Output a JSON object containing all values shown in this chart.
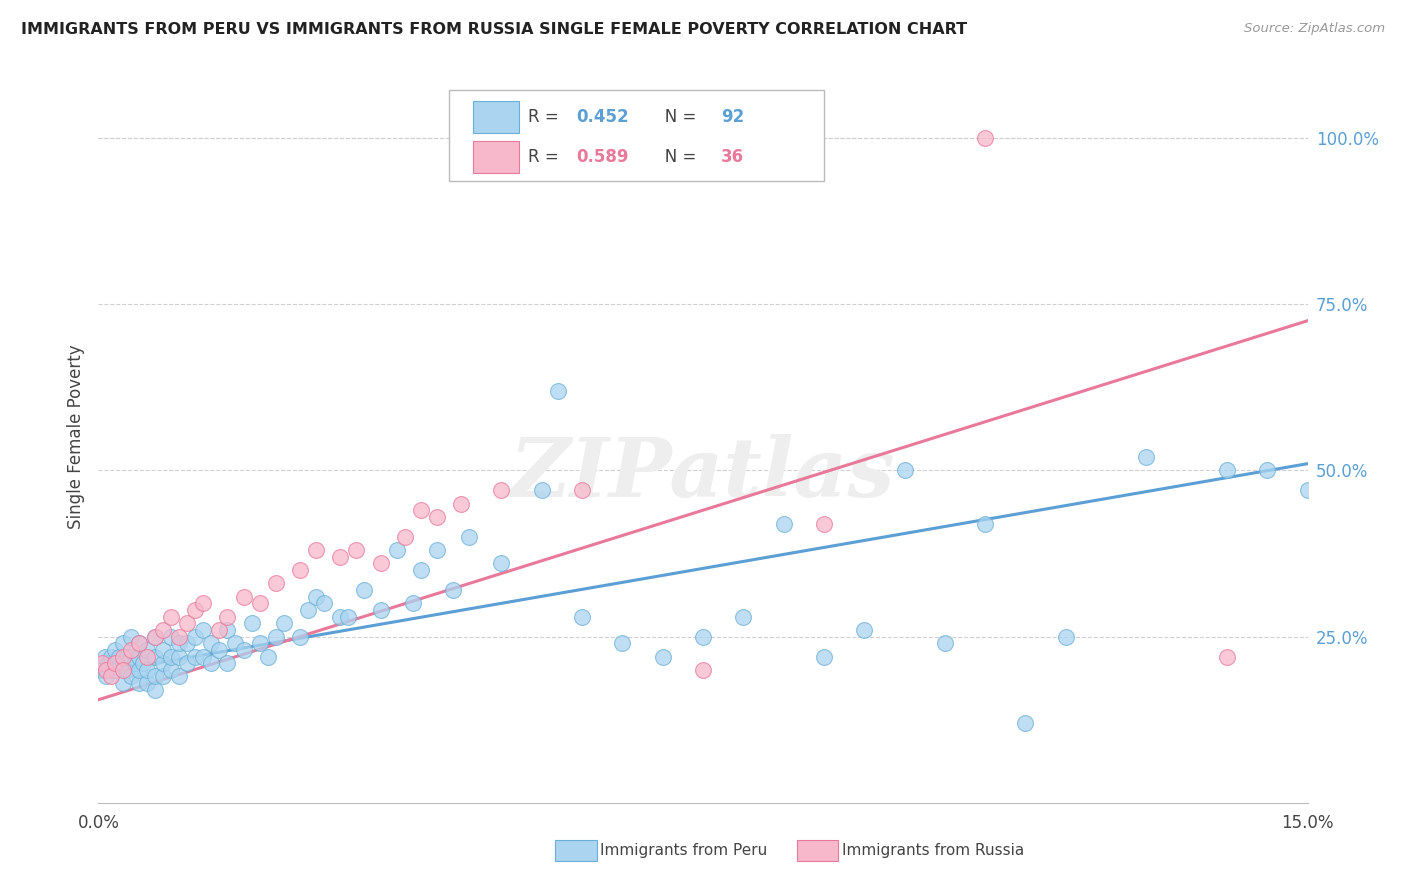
{
  "title": "IMMIGRANTS FROM PERU VS IMMIGRANTS FROM RUSSIA SINGLE FEMALE POVERTY CORRELATION CHART",
  "source": "Source: ZipAtlas.com",
  "ylabel": "Single Female Poverty",
  "right_yticks": [
    "100.0%",
    "75.0%",
    "50.0%",
    "25.0%"
  ],
  "right_ytick_vals": [
    1.0,
    0.75,
    0.5,
    0.25
  ],
  "xlim": [
    0.0,
    0.15
  ],
  "ylim": [
    0.0,
    1.1
  ],
  "peru_color": "#aad4f0",
  "peru_edge_color": "#6aafd6",
  "russia_color": "#f7b8cb",
  "russia_edge_color": "#e8799a",
  "peru_R": 0.452,
  "peru_N": 92,
  "russia_R": 0.589,
  "russia_N": 36,
  "watermark": "ZIPatlas",
  "peru_line_color": "#5b9fd4",
  "russia_line_color": "#e8799a",
  "legend_label_peru": "Immigrants from Peru",
  "legend_label_russia": "Immigrants from Russia",
  "peru_scatter_x": [
    0.0005,
    0.0008,
    0.001,
    0.0012,
    0.0015,
    0.0018,
    0.002,
    0.002,
    0.0022,
    0.0025,
    0.003,
    0.003,
    0.003,
    0.0035,
    0.0035,
    0.004,
    0.004,
    0.004,
    0.0045,
    0.005,
    0.005,
    0.005,
    0.005,
    0.0055,
    0.006,
    0.006,
    0.006,
    0.007,
    0.007,
    0.007,
    0.007,
    0.008,
    0.008,
    0.008,
    0.009,
    0.009,
    0.009,
    0.01,
    0.01,
    0.01,
    0.011,
    0.011,
    0.012,
    0.012,
    0.013,
    0.013,
    0.014,
    0.014,
    0.015,
    0.016,
    0.016,
    0.017,
    0.018,
    0.019,
    0.02,
    0.021,
    0.022,
    0.023,
    0.025,
    0.026,
    0.027,
    0.028,
    0.03,
    0.031,
    0.033,
    0.035,
    0.037,
    0.039,
    0.04,
    0.042,
    0.044,
    0.046,
    0.05,
    0.055,
    0.057,
    0.06,
    0.065,
    0.07,
    0.075,
    0.08,
    0.085,
    0.09,
    0.095,
    0.1,
    0.105,
    0.11,
    0.115,
    0.12,
    0.13,
    0.14,
    0.145,
    0.15
  ],
  "peru_scatter_y": [
    0.2,
    0.22,
    0.19,
    0.21,
    0.22,
    0.2,
    0.21,
    0.23,
    0.2,
    0.22,
    0.18,
    0.21,
    0.24,
    0.2,
    0.22,
    0.19,
    0.22,
    0.25,
    0.21,
    0.18,
    0.2,
    0.22,
    0.24,
    0.21,
    0.18,
    0.2,
    0.23,
    0.17,
    0.19,
    0.22,
    0.25,
    0.19,
    0.21,
    0.23,
    0.2,
    0.22,
    0.25,
    0.19,
    0.22,
    0.24,
    0.21,
    0.24,
    0.22,
    0.25,
    0.22,
    0.26,
    0.21,
    0.24,
    0.23,
    0.21,
    0.26,
    0.24,
    0.23,
    0.27,
    0.24,
    0.22,
    0.25,
    0.27,
    0.25,
    0.29,
    0.31,
    0.3,
    0.28,
    0.28,
    0.32,
    0.29,
    0.38,
    0.3,
    0.35,
    0.38,
    0.32,
    0.4,
    0.36,
    0.47,
    0.62,
    0.28,
    0.24,
    0.22,
    0.25,
    0.28,
    0.42,
    0.22,
    0.26,
    0.5,
    0.24,
    0.42,
    0.12,
    0.25,
    0.52,
    0.5,
    0.5,
    0.47
  ],
  "russia_scatter_x": [
    0.0005,
    0.001,
    0.0015,
    0.002,
    0.003,
    0.003,
    0.004,
    0.005,
    0.006,
    0.007,
    0.008,
    0.009,
    0.01,
    0.011,
    0.012,
    0.013,
    0.015,
    0.016,
    0.018,
    0.02,
    0.022,
    0.025,
    0.027,
    0.03,
    0.032,
    0.035,
    0.038,
    0.04,
    0.042,
    0.045,
    0.05,
    0.06,
    0.075,
    0.09,
    0.11,
    0.14
  ],
  "russia_scatter_y": [
    0.21,
    0.2,
    0.19,
    0.21,
    0.22,
    0.2,
    0.23,
    0.24,
    0.22,
    0.25,
    0.26,
    0.28,
    0.25,
    0.27,
    0.29,
    0.3,
    0.26,
    0.28,
    0.31,
    0.3,
    0.33,
    0.35,
    0.38,
    0.37,
    0.38,
    0.36,
    0.4,
    0.44,
    0.43,
    0.45,
    0.47,
    0.47,
    0.2,
    0.42,
    1.0,
    0.22
  ],
  "peru_line_intercept": 0.195,
  "peru_line_slope": 2.1,
  "russia_line_intercept": 0.155,
  "russia_line_slope": 3.8
}
